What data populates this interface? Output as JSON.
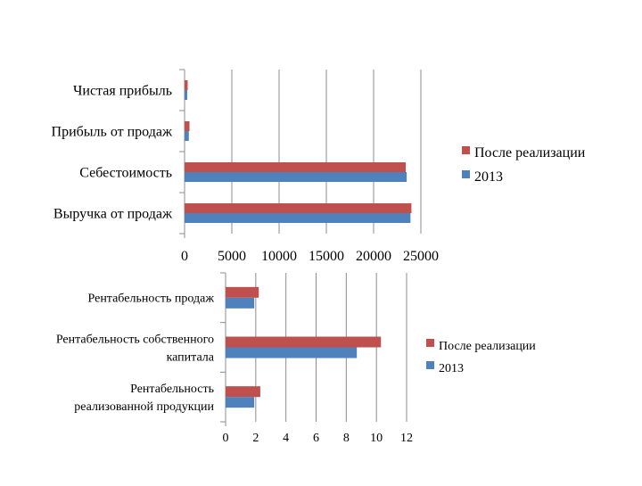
{
  "chart_data": [
    {
      "type": "bar",
      "orientation": "horizontal",
      "categories": [
        "Выручка от продаж",
        "Себестоимость",
        "Прибыль от продаж",
        "Чистая прибыль"
      ],
      "series": [
        {
          "name": "После реализации",
          "values": [
            24000,
            23400,
            520,
            330
          ]
        },
        {
          "name": "2013",
          "values": [
            23900,
            23500,
            450,
            280
          ]
        }
      ],
      "xticks": [
        "0",
        "5000",
        "10000",
        "15000",
        "20000",
        "25000"
      ],
      "xlim": [
        0,
        25000
      ],
      "grid": true,
      "legend": "right",
      "colors": {
        "После реализации": "#c0504d",
        "2013": "#4f81bd"
      }
    },
    {
      "type": "bar",
      "orientation": "horizontal",
      "categories": [
        "Рентабельность реализованной продукции",
        "Рентабельность собственного капитала",
        "Рентабельность продаж"
      ],
      "category_lines": [
        [
          "Рентабельность",
          "реализованной продукции"
        ],
        [
          "Рентабельность собственного",
          "капитала"
        ],
        [
          "Рентабельность продаж"
        ]
      ],
      "series": [
        {
          "name": "После реализации",
          "values": [
            2.3,
            10.3,
            2.2
          ]
        },
        {
          "name": "2013",
          "values": [
            1.9,
            8.7,
            1.9
          ]
        }
      ],
      "xticks": [
        "0",
        "2",
        "4",
        "6",
        "8",
        "10",
        "12"
      ],
      "xlim": [
        0,
        12
      ],
      "grid": true,
      "legend": "right",
      "colors": {
        "После реализации": "#c0504d",
        "2013": "#4f81bd"
      }
    }
  ]
}
